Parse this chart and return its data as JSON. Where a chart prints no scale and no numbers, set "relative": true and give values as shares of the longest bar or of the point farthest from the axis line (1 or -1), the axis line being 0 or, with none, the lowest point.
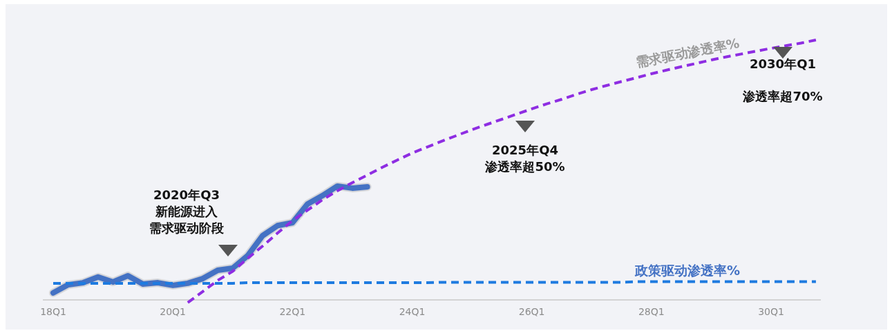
{
  "chart_data": {
    "type": "line",
    "relative": true,
    "categories": [
      "18Q1",
      null,
      null,
      null,
      null,
      null,
      null,
      null,
      "20Q1",
      null,
      null,
      null,
      null,
      null,
      null,
      null,
      "22Q1",
      null,
      null,
      null,
      null,
      null,
      null,
      null,
      "24Q1",
      null,
      null,
      null,
      null,
      null,
      null,
      null,
      "26Q1",
      null,
      null,
      null,
      null,
      null,
      null,
      null,
      "28Q1",
      null,
      null,
      null,
      null,
      null,
      null,
      null,
      "30Q1",
      null,
      null,
      null
    ],
    "series": [
      {
        "color": "#4472c4",
        "line_style": "solid",
        "values": [
          0.027,
          0.058,
          0.066,
          0.088,
          0.069,
          0.093,
          0.061,
          0.066,
          0.056,
          0.064,
          0.082,
          0.114,
          0.122,
          0.17,
          0.247,
          0.286,
          0.297,
          0.369,
          0.401,
          0.438,
          0.43,
          0.435,
          null,
          null,
          null,
          null,
          null,
          null,
          null,
          null,
          null,
          null,
          null,
          null,
          null,
          null,
          null,
          null,
          null,
          null,
          null,
          null,
          null,
          null,
          null,
          null,
          null,
          null,
          null,
          null,
          null,
          null
        ]
      },
      {
        "name": "需求驱动渗透率%",
        "color": "#8e2de2",
        "line_style": "dashed",
        "values": [
          null,
          null,
          null,
          null,
          null,
          null,
          null,
          null,
          null,
          -0.01,
          0.032,
          0.075,
          0.11,
          0.16,
          0.207,
          0.257,
          0.305,
          0.345,
          0.385,
          0.42,
          0.451,
          0.48,
          0.51,
          0.538,
          0.565,
          0.588,
          0.611,
          0.633,
          0.655,
          0.675,
          0.695,
          0.715,
          0.735,
          0.754,
          0.772,
          0.791,
          0.809,
          0.825,
          0.84,
          0.855,
          0.87,
          0.884,
          0.897,
          0.91,
          0.923,
          0.935,
          0.946,
          0.957,
          0.968,
          0.978,
          0.988,
          1
        ]
      },
      {
        "name": "政策驱动渗透率%",
        "color": "#1e7be0",
        "line_style": "dashed",
        "values": [
          0.064,
          0.064,
          0.064,
          0.064,
          0.064,
          0.064,
          0.064,
          0.064,
          0.064,
          0.064,
          0.064,
          0.064,
          0.064,
          0.066,
          0.066,
          0.066,
          0.066,
          0.066,
          0.066,
          0.066,
          0.066,
          0.066,
          0.066,
          0.066,
          0.066,
          0.066,
          0.068,
          0.068,
          0.068,
          0.068,
          0.068,
          0.068,
          0.068,
          0.068,
          0.068,
          0.068,
          0.068,
          0.068,
          0.068,
          0.07,
          0.07,
          0.07,
          0.07,
          0.07,
          0.07,
          0.07,
          0.07,
          0.07,
          0.07,
          0.07,
          0.07,
          0.07
        ]
      }
    ],
    "annotations": [
      "2020年Q3",
      "新能源进入",
      "需求驱动阶段",
      "2025年Q4",
      "渗透率超50%",
      "2030年Q1",
      "渗透率超70%"
    ]
  }
}
